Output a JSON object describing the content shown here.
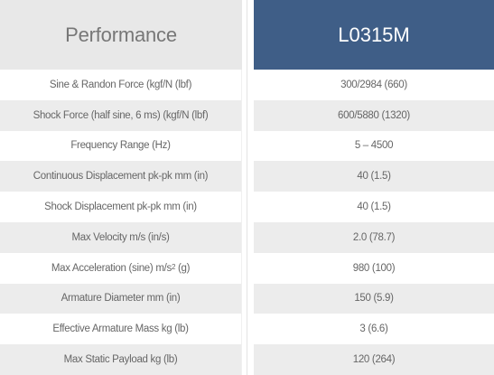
{
  "header": {
    "left_title": "Performance",
    "right_title": "L0315M"
  },
  "rows": [
    {
      "label": "Sine & Randon Force (kgf/N (lbf)",
      "value": "300/2984 (660)"
    },
    {
      "label": "Shock Force (half sine, 6 ms) (kgf/N (lbf)",
      "value": "600/5880 (1320)"
    },
    {
      "label": "Frequency Range (Hz)",
      "value": "5 – 4500"
    },
    {
      "label": "Continuous Displacement pk-pk mm (in)",
      "value": "40 (1.5)"
    },
    {
      "label": "Shock Displacement pk-pk mm (in)",
      "value": "40 (1.5)"
    },
    {
      "label": "Max Velocity m/s (in/s)",
      "value": "2.0 (78.7)"
    },
    {
      "label_prefix": "Max Acceleration (sine) m/s",
      "label_sup": "2",
      "label_suffix": " (g)",
      "value": "980 (100)"
    },
    {
      "label": "Armature Diameter mm (in)",
      "value": "150 (5.9)"
    },
    {
      "label": "Effective Armature Mass kg (lb)",
      "value": "3 (6.6)"
    },
    {
      "label": "Max Static Payload kg (lb)",
      "value": "120 (264)"
    }
  ],
  "colors": {
    "header_left_bg": "#e8e8e8",
    "header_right_bg": "#3f5e87",
    "row_shade": "#ececec",
    "text": "#666666"
  }
}
